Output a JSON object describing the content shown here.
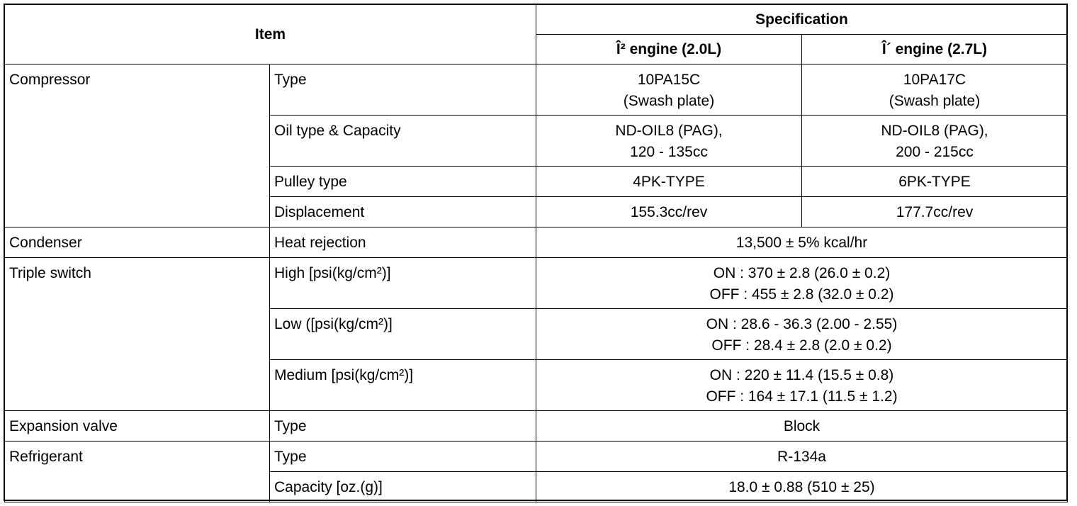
{
  "table": {
    "header": {
      "item": "Item",
      "specification": "Specification",
      "engines": [
        "Î² engine (2.0L)",
        "Î´ engine (2.7L)"
      ]
    },
    "groups": [
      {
        "name": "Compressor",
        "items": [
          {
            "label": "Type",
            "specs": [
              [
                "10PA15C",
                "(Swash plate)"
              ],
              [
                "10PA17C",
                "(Swash plate)"
              ]
            ]
          },
          {
            "label": "Oil type & Capacity",
            "specs": [
              [
                "ND-OIL8 (PAG),",
                "120 - 135cc"
              ],
              [
                "ND-OIL8 (PAG),",
                "200 - 215cc"
              ]
            ]
          },
          {
            "label": "Pulley type",
            "specs": [
              [
                "4PK-TYPE"
              ],
              [
                "6PK-TYPE"
              ]
            ]
          },
          {
            "label": "Displacement",
            "specs": [
              [
                "155.3cc/rev"
              ],
              [
                "177.7cc/rev"
              ]
            ]
          }
        ]
      },
      {
        "name": "Condenser",
        "items": [
          {
            "label": "Heat rejection",
            "spec": [
              "13,500 ± 5% kcal/hr"
            ]
          }
        ]
      },
      {
        "name": "Triple switch",
        "items": [
          {
            "label": "High [psi(kg/cm²)]",
            "spec": [
              "ON : 370 ± 2.8 (26.0 ± 0.2)",
              "OFF : 455 ± 2.8 (32.0 ± 0.2)"
            ]
          },
          {
            "label": "Low ([psi(kg/cm²)]",
            "spec": [
              "ON : 28.6 - 36.3 (2.00 - 2.55)",
              "OFF : 28.4 ± 2.8 (2.0 ± 0.2)"
            ]
          },
          {
            "label": "Medium [psi(kg/cm²)]",
            "spec": [
              "ON : 220 ± 11.4 (15.5 ± 0.8)",
              "OFF : 164 ± 17.1 (11.5 ± 1.2)"
            ]
          }
        ]
      },
      {
        "name": "Expansion valve",
        "items": [
          {
            "label": "Type",
            "spec": [
              "Block"
            ]
          }
        ]
      },
      {
        "name": "Refrigerant",
        "items": [
          {
            "label": "Type",
            "spec": [
              "R-134a"
            ]
          },
          {
            "label": "Capacity [oz.(g)]",
            "spec": [
              "18.0 ± 0.88 (510 ± 25)"
            ]
          }
        ]
      }
    ]
  }
}
